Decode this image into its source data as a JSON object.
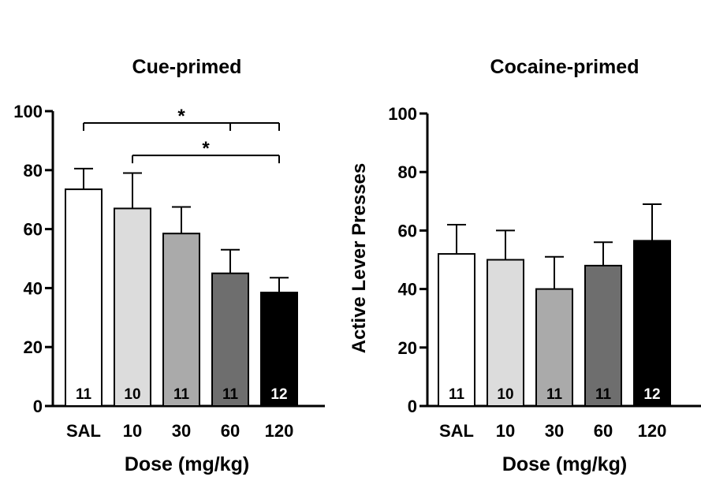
{
  "bar_fills": [
    "#ffffff",
    "#dcdcdc",
    "#aaaaaa",
    "#6e6e6e",
    "#000000"
  ],
  "n_label_colors": [
    "#000000",
    "#000000",
    "#000000",
    "#000000",
    "#ffffff"
  ],
  "chart_data": [
    {
      "type": "bar",
      "title": "Cue-primed",
      "xlabel": "Dose (mg/kg)",
      "ylabel": "",
      "ylim": [
        0,
        100
      ],
      "yticks": [
        "0",
        "20",
        "40",
        "60",
        "80",
        "100"
      ],
      "categories": [
        "SAL",
        "10",
        "30",
        "60",
        "120"
      ],
      "values": [
        73.5,
        67,
        58.5,
        45,
        38.5
      ],
      "errors": [
        7,
        12,
        9,
        8,
        5
      ],
      "n_labels": [
        "11",
        "10",
        "11",
        "11",
        "12"
      ],
      "significance": [
        {
          "label": "*",
          "from": 0,
          "to": 4,
          "y": 96,
          "mid_tick": 3
        },
        {
          "label": "*",
          "from": 1,
          "to": 4,
          "y": 85,
          "mid_tick": null
        }
      ]
    },
    {
      "type": "bar",
      "title": "Cocaine-primed",
      "xlabel": "Dose (mg/kg)",
      "ylabel": "Active Lever Presses",
      "ylim": [
        0,
        100
      ],
      "yticks": [
        "0",
        "20",
        "40",
        "60",
        "80",
        "100"
      ],
      "categories": [
        "SAL",
        "10",
        "30",
        "60",
        "120"
      ],
      "values": [
        52,
        50,
        40,
        48,
        56.5
      ],
      "errors": [
        10,
        10,
        11,
        8,
        12.5
      ],
      "n_labels": [
        "11",
        "10",
        "11",
        "11",
        "12"
      ],
      "significance": []
    }
  ]
}
